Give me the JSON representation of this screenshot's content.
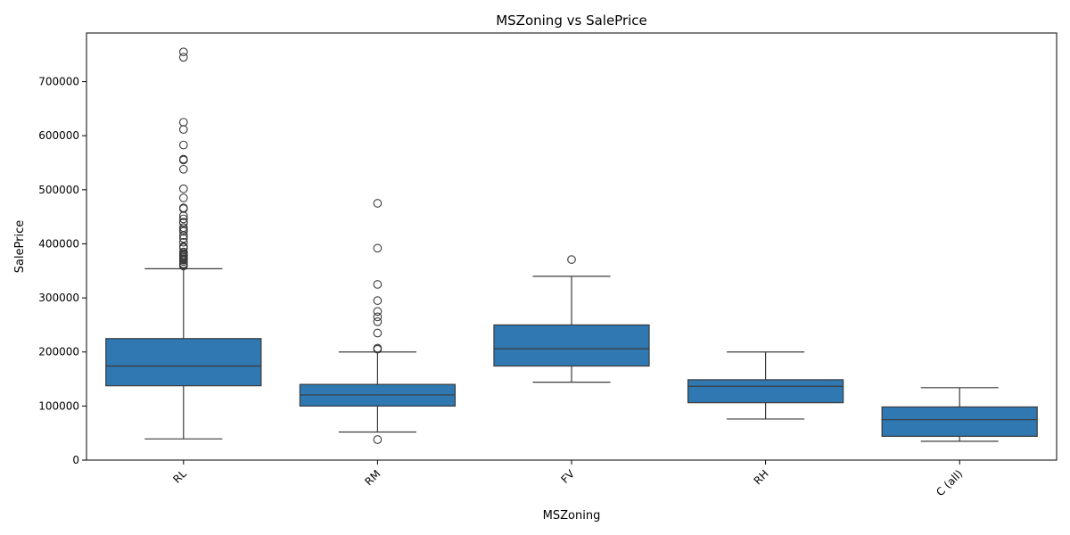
{
  "chart_data": {
    "type": "box",
    "title": "MSZoning vs SalePrice",
    "xlabel": "MSZoning",
    "ylabel": "SalePrice",
    "ylim": [
      0,
      790000
    ],
    "yticks": [
      0,
      100000,
      200000,
      300000,
      400000,
      500000,
      600000,
      700000
    ],
    "ytick_labels": [
      "0",
      "100000",
      "200000",
      "300000",
      "400000",
      "500000",
      "600000",
      "700000"
    ],
    "categories": [
      "RL",
      "RM",
      "FV",
      "RH",
      "C (all)"
    ],
    "boxes": [
      {
        "category": "RL",
        "whisker_low": 39300,
        "q1": 137500,
        "median": 174000,
        "q3": 224700,
        "whisker_high": 354000,
        "outliers": [
          755000,
          745000,
          625000,
          611657,
          582933,
          556581,
          555000,
          538000,
          501837,
          485000,
          466500,
          465000,
          451950,
          446261,
          440000,
          438780,
          430000,
          426000,
          423000,
          415298,
          410000,
          402861,
          395000,
          394617,
          392500,
          385000,
          383970,
          381000,
          378500,
          377500,
          377426,
          375000,
          372402,
          372500,
          370878,
          369900,
          367294,
          363000,
          361919,
          360000,
          359100
        ]
      },
      {
        "category": "RM",
        "whisker_low": 52000,
        "q1": 100000,
        "median": 120500,
        "q3": 140000,
        "whisker_high": 200000,
        "outliers": [
          475000,
          392000,
          325000,
          295000,
          275000,
          265000,
          256000,
          235000,
          207000,
          205000,
          37900
        ]
      },
      {
        "category": "FV",
        "whisker_low": 144152,
        "q1": 174000,
        "median": 205950,
        "q3": 250000,
        "whisker_high": 340000,
        "outliers": [
          370878
        ]
      },
      {
        "category": "RH",
        "whisker_low": 76000,
        "q1": 106150,
        "median": 136500,
        "q3": 148608,
        "whisker_high": 200000,
        "outliers": []
      },
      {
        "category": "C (all)",
        "whisker_low": 34900,
        "q1": 43998,
        "median": 74700,
        "q3": 98332,
        "whisker_high": 133900,
        "outliers": []
      }
    ],
    "box_color": "#2f78b1",
    "line_color": "#3b3b3b",
    "grid": false,
    "legend": "none"
  }
}
